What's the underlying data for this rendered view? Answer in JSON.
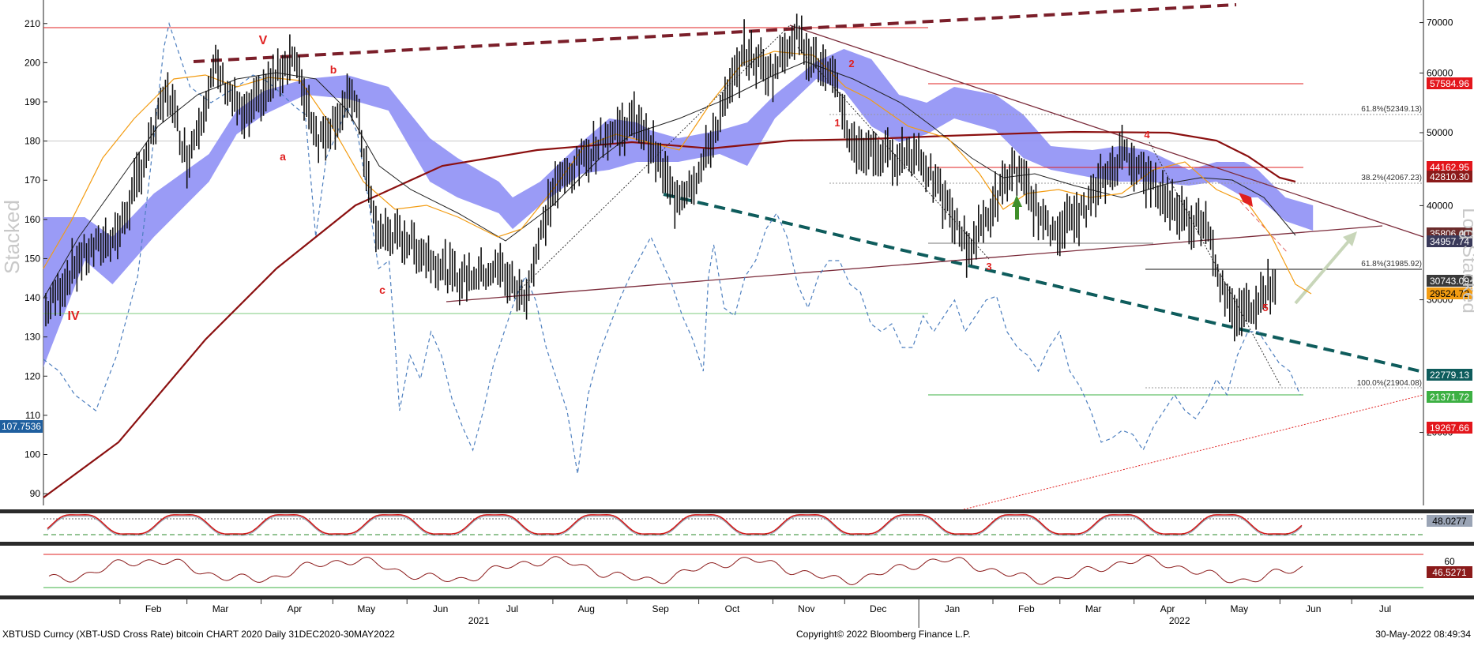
{
  "chart_data": {
    "type": "line",
    "title": "XBTUSD Curncy (XBT-USD Cross Rate) bitcoin CHART 2020  Daily 31DEC2020-30MAY2022",
    "copyright": "Copyright© 2022 Bloomberg Finance L.P.",
    "timestamp": "30-May-2022 08:49:34",
    "left_axis_title": "Stacked",
    "right_axis_title": "Log Stacked",
    "left_axis": {
      "ticks": [
        210,
        200,
        190,
        180,
        170,
        160,
        150,
        140,
        130,
        120,
        110,
        100,
        90
      ],
      "ylim": [
        87,
        216
      ]
    },
    "right_axis": {
      "scale": "log",
      "ticks": [
        70000,
        60000,
        50000,
        40000,
        30000,
        20000
      ],
      "ylim": [
        16000,
        75000
      ]
    },
    "x_axis": {
      "months": [
        "Feb",
        "Mar",
        "Apr",
        "May",
        "Jun",
        "Jul",
        "Aug",
        "Sep",
        "Oct",
        "Nov",
        "Dec",
        "Jan",
        "Feb",
        "Mar",
        "Apr",
        "May",
        "Jun",
        "Jul"
      ],
      "years": [
        "2021",
        "2022"
      ]
    },
    "price_series": {
      "name": "XBTUSD",
      "dates": [
        "2021-01-01",
        "2021-01-15",
        "2021-02-01",
        "2021-02-21",
        "2021-03-01",
        "2021-03-13",
        "2021-03-25",
        "2021-04-14",
        "2021-04-25",
        "2021-05-10",
        "2021-05-19",
        "2021-06-01",
        "2021-06-22",
        "2021-07-10",
        "2021-07-20",
        "2021-08-01",
        "2021-08-23",
        "2021-09-06",
        "2021-09-21",
        "2021-10-01",
        "2021-10-20",
        "2021-11-01",
        "2021-11-10",
        "2021-11-28",
        "2021-12-04",
        "2021-12-20",
        "2022-01-01",
        "2022-01-22",
        "2022-02-10",
        "2022-02-24",
        "2022-03-10",
        "2022-03-28",
        "2022-04-10",
        "2022-04-25",
        "2022-05-01",
        "2022-05-09",
        "2022-05-12",
        "2022-05-20",
        "2022-05-30"
      ],
      "values": [
        29000,
        34000,
        37000,
        57000,
        46000,
        61000,
        52000,
        63500,
        49000,
        56000,
        37000,
        36000,
        32000,
        33000,
        30000,
        42000,
        49500,
        52000,
        41000,
        44000,
        64000,
        60000,
        68000,
        57000,
        48000,
        46500,
        47000,
        35000,
        45000,
        37000,
        39000,
        47500,
        42000,
        38000,
        38500,
        30000,
        28700,
        29500,
        31800
      ]
    },
    "overlay_series": [
      {
        "name": "200-day moving average"
      },
      {
        "name": "50-day moving average"
      },
      {
        "name": "20-day moving average"
      },
      {
        "name": "Ichimoku cloud"
      },
      {
        "name": "Relative line (left scale)"
      }
    ],
    "annotations": {
      "waves": [
        "IV",
        "V",
        "a",
        "b",
        "c",
        "1",
        "2",
        "3",
        "4",
        "5"
      ],
      "fib_labels": [
        "61.8%(52349.13)",
        "38.2%(42067.23)",
        "61.8%(31985.92)",
        "100.0%(21904.08)"
      ]
    },
    "right_tags": [
      {
        "text": "57584.96",
        "bg": "#e3161c",
        "fg": "#ffffff"
      },
      {
        "text": "44162.95",
        "bg": "#e3161c",
        "fg": "#ffffff"
      },
      {
        "text": "42810.30",
        "bg": "#8b1a1a",
        "fg": "#ffffff"
      },
      {
        "text": "35806.40",
        "bg": "#6b2b2b",
        "fg": "#ffffff"
      },
      {
        "text": "34957.74",
        "bg": "#3a3a5a",
        "fg": "#ffffff"
      },
      {
        "text": "30743.09",
        "bg": "#3a3a3a",
        "fg": "#ffffff"
      },
      {
        "text": "29524.72",
        "bg": "#f39c12",
        "fg": "#000000"
      },
      {
        "text": "22779.13",
        "bg": "#0e5c5c",
        "fg": "#ffffff"
      },
      {
        "text": "21371.72",
        "bg": "#3cb043",
        "fg": "#ffffff"
      },
      {
        "text": "19267.66",
        "bg": "#e3161c",
        "fg": "#ffffff"
      }
    ],
    "left_tag": {
      "text": "107.7536",
      "bg": "#1f5f9f",
      "fg": "#ffffff"
    },
    "panel_tags": [
      {
        "text": "48.0277",
        "bg": "#9aa4b5",
        "fg": "#000000"
      },
      {
        "text": "46.5271",
        "bg": "#8b1a1a",
        "fg": "#ffffff"
      },
      {
        "text": "60",
        "bg": "transparent",
        "fg": "#000000"
      }
    ]
  }
}
